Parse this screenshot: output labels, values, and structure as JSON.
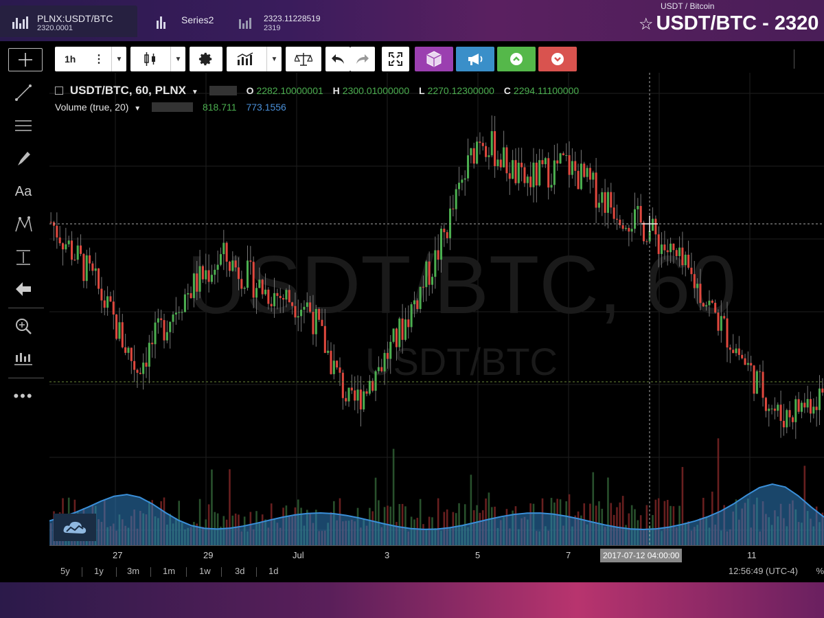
{
  "tabs": [
    {
      "title": "PLNX:USDT/BTC",
      "sub": "2320.0001",
      "active": true
    },
    {
      "title": "Series2",
      "sub": "",
      "active": false
    },
    {
      "title": "2323.11228519",
      "sub": "2319",
      "active": false
    }
  ],
  "header": {
    "subtitle": "USDT / Bitcoin",
    "title": "USDT/BTC - 2320",
    "star": "☆"
  },
  "toolbar": {
    "interval": "1h",
    "colors": {
      "purple": "#9b3fb0",
      "blue": "#3a8fc9",
      "green": "#55b84a",
      "red": "#d9534f"
    }
  },
  "legend": {
    "symbol": "USDT/BTC, 60, PLNX",
    "o_label": "O",
    "o_value": "2282.10000001",
    "h_label": "H",
    "h_value": "2300.01000000",
    "l_label": "L",
    "l_value": "2270.12300000",
    "c_label": "C",
    "c_value": "2294.11100000",
    "volume_label": "Volume (true, 20)",
    "vol_value1": "818.711",
    "vol_value2": "773.1556"
  },
  "watermark": {
    "big": "USDT/BTC, 60",
    "small": "USDT/BTC"
  },
  "x_axis": {
    "ticks": [
      "27",
      "29",
      "Jul",
      "3",
      "5",
      "7",
      "9",
      "11"
    ],
    "tooltip": "2017-07-12 04:00:00"
  },
  "bottom": {
    "ranges": [
      "5y",
      "1y",
      "3m",
      "1m",
      "1w",
      "3d",
      "1d"
    ],
    "clock": "12:56:49 (UTC-4)",
    "pct": "%"
  },
  "chart_data": {
    "type": "candlestick",
    "x_ticks": [
      "27",
      "29",
      "Jul",
      "3",
      "5",
      "7",
      "9",
      "11"
    ],
    "close_approx": [
      2680,
      2560,
      2380,
      2520,
      2610,
      2540,
      2510,
      2300,
      2430,
      2610,
      2860,
      2760,
      2800,
      2720,
      2660,
      2560,
      2420,
      2280,
      2330
    ],
    "colors": {
      "up": "#4caf50",
      "down": "#e0483e",
      "volume_area": "#2f7fc1"
    }
  }
}
